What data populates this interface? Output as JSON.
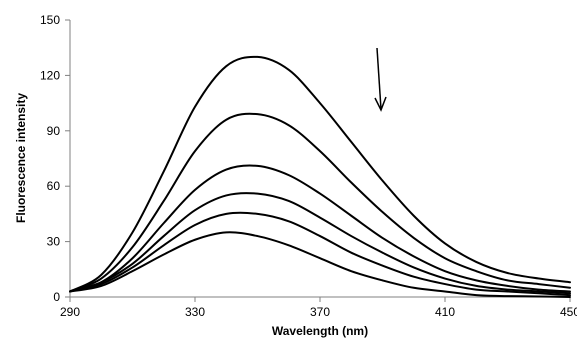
{
  "chart_data": {
    "type": "line",
    "title": "",
    "xlabel": "Wavelength (nm)",
    "ylabel": "Fluorescence intensity",
    "xlim": [
      290,
      450
    ],
    "ylim": [
      0,
      150
    ],
    "x_ticks": [
      "290",
      "330",
      "370",
      "410",
      "450"
    ],
    "y_ticks": [
      "0",
      "30",
      "60",
      "90",
      "120",
      "150"
    ],
    "grid": false,
    "legend": "none",
    "annotation": "downward arrow near 390 nm indicating intensity decrease",
    "x": [
      290,
      300,
      310,
      320,
      330,
      340,
      350,
      360,
      370,
      380,
      390,
      400,
      410,
      420,
      430,
      440,
      450
    ],
    "series": [
      {
        "values": [
          3,
          12,
          35,
          68,
          103,
          125,
          130,
          123,
          105,
          84,
          63,
          44,
          29,
          19,
          13,
          10,
          8
        ]
      },
      {
        "values": [
          3,
          10,
          27,
          52,
          79,
          96,
          99,
          93,
          79,
          62,
          46,
          32,
          21,
          14,
          9,
          7,
          5
        ]
      },
      {
        "values": [
          3,
          8,
          21,
          40,
          58,
          69,
          71,
          66,
          56,
          44,
          32,
          22,
          14,
          9,
          6,
          4,
          3
        ]
      },
      {
        "values": [
          3,
          8,
          18,
          33,
          47,
          55,
          56,
          52,
          43,
          33,
          24,
          16,
          10,
          6,
          4,
          3,
          2
        ]
      },
      {
        "values": [
          3,
          7,
          16,
          28,
          39,
          45,
          45,
          41,
          33,
          24,
          17,
          11,
          7,
          4,
          3,
          2,
          1
        ]
      },
      {
        "values": [
          3,
          6,
          14,
          23,
          31,
          35,
          33,
          28,
          21,
          14,
          9,
          5,
          3,
          1,
          0.5,
          0.3,
          0
        ]
      }
    ]
  }
}
